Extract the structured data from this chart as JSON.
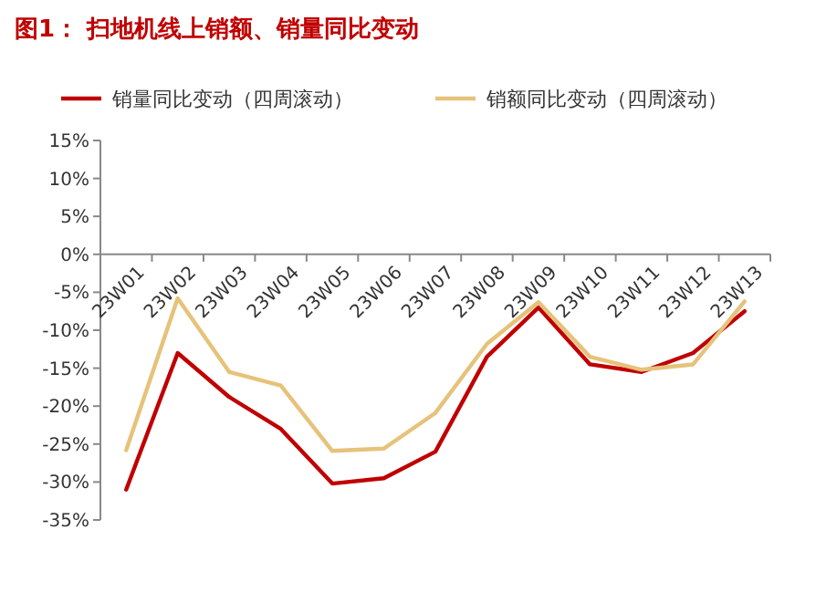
{
  "chart_data": {
    "type": "line",
    "title": "图1：  扫地机线上销额、销量同比变动",
    "categories": [
      "23W01",
      "23W02",
      "23W03",
      "23W04",
      "23W05",
      "23W06",
      "23W07",
      "23W08",
      "23W09",
      "23W10",
      "23W11",
      "23W12",
      "23W13"
    ],
    "series": [
      {
        "name": "销量同比变动（四周滚动）",
        "color": "#c00000",
        "values": [
          -31,
          -13,
          -18.8,
          -23,
          -30.2,
          -29.5,
          -26,
          -13.5,
          -7,
          -14.5,
          -15.5,
          -13,
          -7.5
        ]
      },
      {
        "name": "销额同比变动（四周滚动）",
        "color": "#e6c27a",
        "values": [
          -25.8,
          -5.8,
          -15.5,
          -17.3,
          -25.9,
          -25.6,
          -20.9,
          -11.8,
          -6.3,
          -13.5,
          -15.2,
          -14.5,
          -6.2
        ]
      }
    ],
    "ylim": [
      -35,
      15
    ],
    "yticks": [
      {
        "value": -35,
        "label": "-35%"
      },
      {
        "value": -30,
        "label": "-30%"
      },
      {
        "value": -25,
        "label": "-25%"
      },
      {
        "value": -20,
        "label": "-20%"
      },
      {
        "value": -15,
        "label": "-15%"
      },
      {
        "value": -10,
        "label": "-10%"
      },
      {
        "value": -5,
        "label": "-5%"
      },
      {
        "value": 0,
        "label": "0%"
      },
      {
        "value": 5,
        "label": "5%"
      },
      {
        "value": 10,
        "label": "10%"
      },
      {
        "value": 15,
        "label": "15%"
      }
    ],
    "grid": false,
    "legend": "top",
    "line_style": "solid"
  }
}
